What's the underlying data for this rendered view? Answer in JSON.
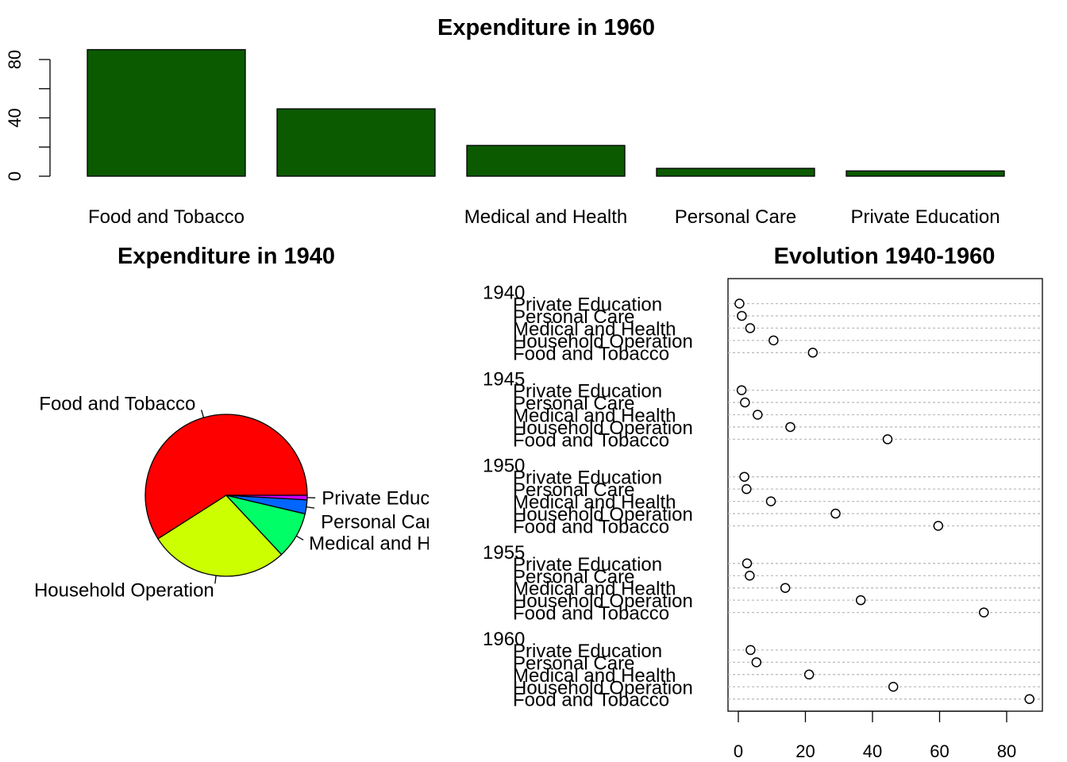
{
  "chart_data": [
    {
      "type": "bar",
      "title": "Expenditure in 1960",
      "categories": [
        "Food and Tobacco",
        "Household Operation",
        "Medical and Health",
        "Personal Care",
        "Private Education"
      ],
      "category_labels_visible": [
        "Food and Tobacco",
        "",
        "Medical and Health",
        "Personal Care",
        "Private Education"
      ],
      "values": [
        86.8,
        46.2,
        21.1,
        5.4,
        3.64
      ],
      "ylim": [
        0,
        90
      ],
      "yticks": [
        0,
        40,
        80
      ],
      "bar_color": "#0b5a00"
    },
    {
      "type": "pie",
      "title": "Expenditure in 1940",
      "labels": [
        "Food and Tobacco",
        "Household Operation",
        "Medical and Health",
        "Personal Care",
        "Private Education"
      ],
      "values": [
        22.2,
        10.5,
        3.53,
        1.04,
        0.341
      ],
      "colors": [
        "#ff0000",
        "#ccff00",
        "#00ff66",
        "#0066ff",
        "#cc00ff"
      ]
    },
    {
      "type": "scatter",
      "subtype": "dotchart",
      "title": "Evolution 1940-1960",
      "groups": [
        "1940",
        "1945",
        "1950",
        "1955",
        "1960"
      ],
      "items": [
        "Private Education",
        "Personal Care",
        "Medical and Health",
        "Household Operation",
        "Food and Tobacco"
      ],
      "series": [
        {
          "name": "1940",
          "values": [
            0.341,
            1.04,
            3.53,
            10.5,
            22.2
          ]
        },
        {
          "name": "1945",
          "values": [
            0.974,
            1.98,
            5.76,
            15.5,
            44.5
          ]
        },
        {
          "name": "1950",
          "values": [
            1.8,
            2.45,
            9.71,
            29.0,
            59.6
          ]
        },
        {
          "name": "1955",
          "values": [
            2.6,
            3.4,
            14.0,
            36.5,
            73.2
          ]
        },
        {
          "name": "1960",
          "values": [
            3.64,
            5.4,
            21.1,
            46.2,
            86.8
          ]
        }
      ],
      "xlim": [
        -3,
        91
      ],
      "xticks": [
        0,
        20,
        40,
        60,
        80
      ],
      "grid": "dotted horizontal lines"
    }
  ]
}
